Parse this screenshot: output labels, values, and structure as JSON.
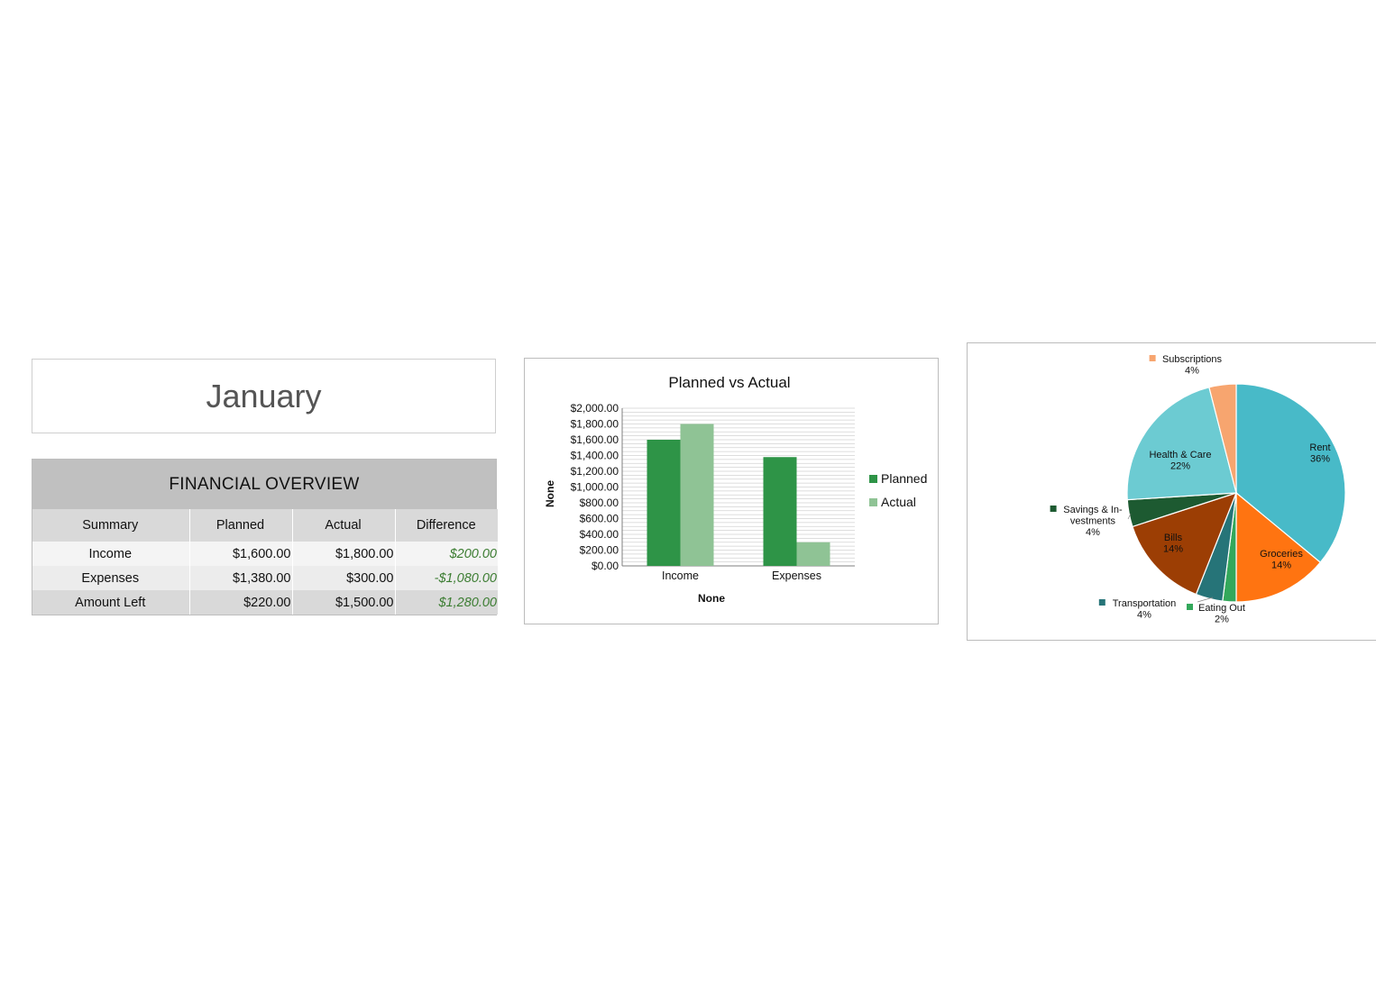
{
  "month": "January",
  "overview": {
    "title": "FINANCIAL OVERVIEW",
    "headers": [
      "Summary",
      "Planned",
      "Actual",
      "Difference"
    ],
    "rows": [
      {
        "label": "Income",
        "planned": "$1,600.00",
        "actual": "$1,800.00",
        "difference": "$200.00"
      },
      {
        "label": "Expenses",
        "planned": "$1,380.00",
        "actual": "$300.00",
        "difference": "-$1,080.00"
      },
      {
        "label": "Amount Left",
        "planned": "$220.00",
        "actual": "$1,500.00",
        "difference": "$1,280.00"
      }
    ],
    "colors": {
      "header_bg": "#c0c0c0",
      "difference_text": "#3c7d32"
    }
  },
  "chart_data": [
    {
      "type": "bar",
      "title": "Planned vs Actual",
      "xlabel": "None",
      "ylabel": "None",
      "categories": [
        "Income",
        "Expenses"
      ],
      "series": [
        {
          "name": "Planned",
          "values": [
            1600,
            1380
          ],
          "color": "#2e9447"
        },
        {
          "name": "Actual",
          "values": [
            1800,
            300
          ],
          "color": "#8fc395"
        }
      ],
      "ylim": [
        0,
        2000
      ],
      "yticks": [
        0,
        200,
        400,
        600,
        800,
        1000,
        1200,
        1400,
        1600,
        1800,
        2000
      ],
      "ytick_labels": [
        "$0.00",
        "$200.00",
        "$400.00",
        "$600.00",
        "$800.00",
        "$1,000.00",
        "$1,200.00",
        "$1,400.00",
        "$1,600.00",
        "$1,800.00",
        "$2,000.00"
      ],
      "grid": true,
      "legend": "right"
    },
    {
      "type": "pie",
      "slices": [
        {
          "label": "Rent",
          "percent_label": "36%",
          "value": 36,
          "color": "#48bac8"
        },
        {
          "label": "Groceries",
          "percent_label": "14%",
          "value": 14,
          "color": "#ff7411"
        },
        {
          "label": "Eating Out",
          "percent_label": "2%",
          "value": 2,
          "color": "#33a85b"
        },
        {
          "label": "Transportation",
          "percent_label": "4%",
          "value": 4,
          "color": "#267478"
        },
        {
          "label": "Bills",
          "percent_label": "14%",
          "value": 14,
          "color": "#9c3e04"
        },
        {
          "label": "Savings & In-vestments",
          "label_lines": [
            "Savings & In-",
            "vestments"
          ],
          "percent_label": "4%",
          "value": 4,
          "color": "#1d5a31"
        },
        {
          "label": "Health & Care",
          "percent_label": "22%",
          "value": 22,
          "color": "#6ccbd2"
        },
        {
          "label": "Subscriptions",
          "percent_label": "4%",
          "value": 4,
          "color": "#f7a56f"
        }
      ],
      "start_angle_deg": 0,
      "direction": "clockwise"
    }
  ]
}
